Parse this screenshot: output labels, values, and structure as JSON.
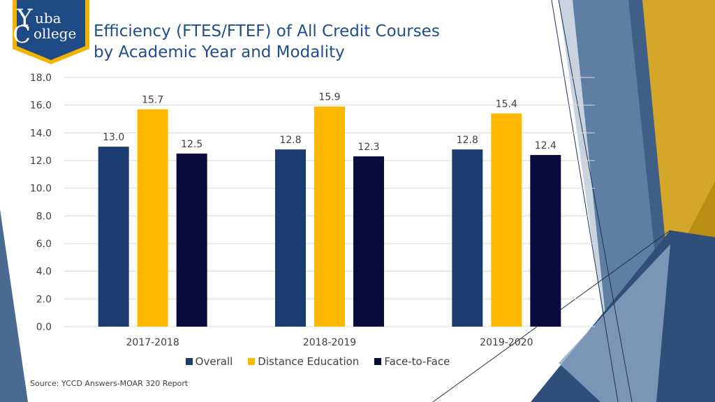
{
  "logo": {
    "big_y": "Y",
    "line1": "uba",
    "big_c": "C",
    "line2": "ollege"
  },
  "title_lines": [
    "Efficiency (FTES/FTEF) of All Credit Courses",
    "by Academic Year and Modality"
  ],
  "source": "Source: YCCD Answers-MOAR 320 Report",
  "colors": {
    "title": "#1f4e8c",
    "overall": "#1a3c6e",
    "distance": "#ffb700",
    "face": "#0a0a3c",
    "grid": "#d9d9d9"
  },
  "chart_data": {
    "type": "bar",
    "categories": [
      "2017-2018",
      "2018-2019",
      "2019-2020"
    ],
    "series": [
      {
        "name": "Overall",
        "values": [
          13.0,
          12.8,
          12.8
        ],
        "labels": [
          "13.0",
          "12.8",
          "12.8"
        ]
      },
      {
        "name": "Distance Education",
        "values": [
          15.7,
          15.9,
          15.4
        ],
        "labels": [
          "15.7",
          "15.9",
          "15.4"
        ]
      },
      {
        "name": "Face-to-Face",
        "values": [
          12.5,
          12.3,
          12.4
        ],
        "labels": [
          "12.5",
          "12.3",
          "12.4"
        ]
      }
    ],
    "ylim": [
      0,
      18
    ],
    "yticks": [
      "0.0",
      "2.0",
      "4.0",
      "6.0",
      "8.0",
      "10.0",
      "12.0",
      "14.0",
      "16.0",
      "18.0"
    ],
    "grid": true,
    "legend": "bottom"
  }
}
